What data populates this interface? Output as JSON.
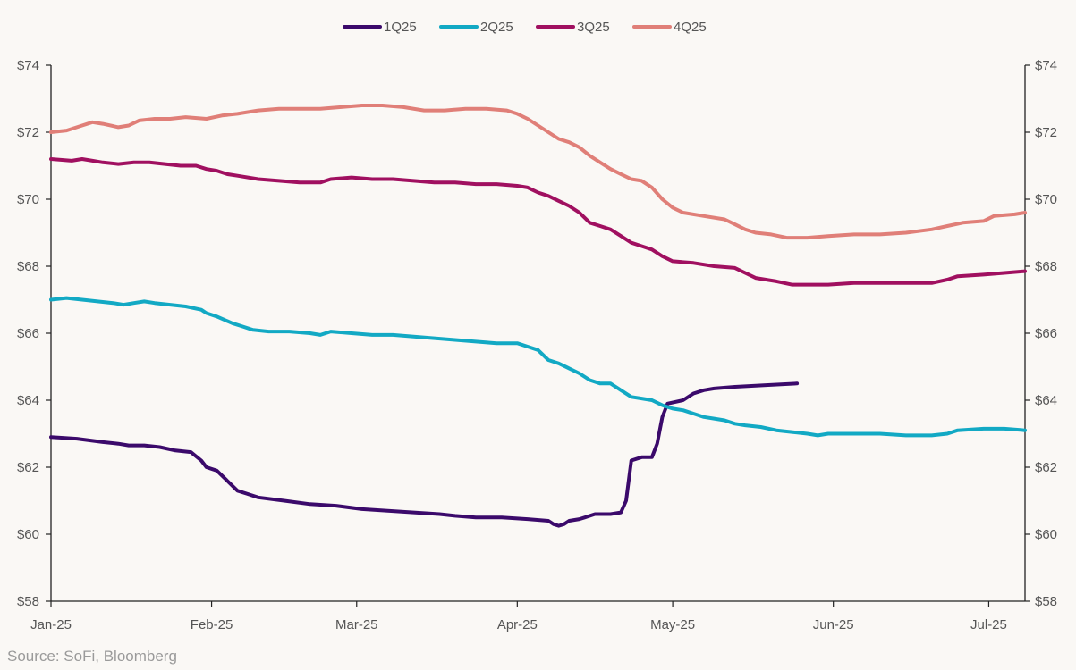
{
  "chart_data": {
    "type": "line",
    "title": "",
    "xlabel": "",
    "ylabel": "",
    "y_tick_prefix": "$",
    "ylim": [
      58,
      74
    ],
    "yticks": [
      58,
      60,
      62,
      64,
      66,
      68,
      70,
      72,
      74
    ],
    "x_ticks": [
      {
        "label": "Jan-25",
        "day": 0
      },
      {
        "label": "Feb-25",
        "day": 31
      },
      {
        "label": "Mar-25",
        "day": 59
      },
      {
        "label": "Apr-25",
        "day": 90
      },
      {
        "label": "May-25",
        "day": 120
      },
      {
        "label": "Jun-25",
        "day": 151
      },
      {
        "label": "Jul-25",
        "day": 181
      }
    ],
    "x_domain": [
      0,
      188
    ],
    "legend_position": "top-center",
    "series": [
      {
        "name": "1Q25",
        "color": "#3b0a6b",
        "points": [
          [
            0,
            62.9
          ],
          [
            5,
            62.85
          ],
          [
            10,
            62.75
          ],
          [
            13,
            62.7
          ],
          [
            15,
            62.65
          ],
          [
            18,
            62.65
          ],
          [
            21,
            62.6
          ],
          [
            24,
            62.5
          ],
          [
            27,
            62.45
          ],
          [
            29,
            62.2
          ],
          [
            30,
            62.0
          ],
          [
            32,
            61.9
          ],
          [
            34,
            61.6
          ],
          [
            36,
            61.3
          ],
          [
            38,
            61.2
          ],
          [
            40,
            61.1
          ],
          [
            45,
            61.0
          ],
          [
            50,
            60.9
          ],
          [
            55,
            60.85
          ],
          [
            60,
            60.75
          ],
          [
            65,
            60.7
          ],
          [
            70,
            60.65
          ],
          [
            75,
            60.6
          ],
          [
            78,
            60.55
          ],
          [
            82,
            60.5
          ],
          [
            87,
            60.5
          ],
          [
            92,
            60.45
          ],
          [
            96,
            60.4
          ],
          [
            97,
            60.3
          ],
          [
            98,
            60.25
          ],
          [
            99,
            60.3
          ],
          [
            100,
            60.4
          ],
          [
            102,
            60.45
          ],
          [
            103,
            60.5
          ],
          [
            105,
            60.6
          ],
          [
            108,
            60.6
          ],
          [
            110,
            60.65
          ],
          [
            111,
            61.0
          ],
          [
            112,
            62.2
          ],
          [
            114,
            62.3
          ],
          [
            116,
            62.3
          ],
          [
            117,
            62.7
          ],
          [
            118,
            63.5
          ],
          [
            119,
            63.9
          ],
          [
            122,
            64.0
          ],
          [
            124,
            64.2
          ],
          [
            126,
            64.3
          ],
          [
            128,
            64.35
          ],
          [
            132,
            64.4
          ],
          [
            138,
            64.45
          ],
          [
            144,
            64.5
          ]
        ]
      },
      {
        "name": "2Q25",
        "color": "#12a9c4",
        "points": [
          [
            0,
            67.0
          ],
          [
            3,
            67.05
          ],
          [
            6,
            67.0
          ],
          [
            9,
            66.95
          ],
          [
            12,
            66.9
          ],
          [
            14,
            66.85
          ],
          [
            16,
            66.9
          ],
          [
            18,
            66.95
          ],
          [
            20,
            66.9
          ],
          [
            23,
            66.85
          ],
          [
            26,
            66.8
          ],
          [
            29,
            66.7
          ],
          [
            30,
            66.6
          ],
          [
            32,
            66.5
          ],
          [
            35,
            66.3
          ],
          [
            37,
            66.2
          ],
          [
            39,
            66.1
          ],
          [
            42,
            66.05
          ],
          [
            46,
            66.05
          ],
          [
            50,
            66.0
          ],
          [
            52,
            65.95
          ],
          [
            54,
            66.05
          ],
          [
            58,
            66.0
          ],
          [
            62,
            65.95
          ],
          [
            66,
            65.95
          ],
          [
            70,
            65.9
          ],
          [
            74,
            65.85
          ],
          [
            78,
            65.8
          ],
          [
            82,
            65.75
          ],
          [
            86,
            65.7
          ],
          [
            90,
            65.7
          ],
          [
            92,
            65.6
          ],
          [
            94,
            65.5
          ],
          [
            96,
            65.2
          ],
          [
            98,
            65.1
          ],
          [
            100,
            64.95
          ],
          [
            102,
            64.8
          ],
          [
            104,
            64.6
          ],
          [
            106,
            64.5
          ],
          [
            108,
            64.5
          ],
          [
            110,
            64.3
          ],
          [
            112,
            64.1
          ],
          [
            114,
            64.05
          ],
          [
            116,
            64.0
          ],
          [
            118,
            63.85
          ],
          [
            120,
            63.75
          ],
          [
            122,
            63.7
          ],
          [
            124,
            63.6
          ],
          [
            126,
            63.5
          ],
          [
            128,
            63.45
          ],
          [
            130,
            63.4
          ],
          [
            132,
            63.3
          ],
          [
            134,
            63.25
          ],
          [
            137,
            63.2
          ],
          [
            140,
            63.1
          ],
          [
            143,
            63.05
          ],
          [
            146,
            63.0
          ],
          [
            148,
            62.95
          ],
          [
            150,
            63.0
          ],
          [
            155,
            63.0
          ],
          [
            160,
            63.0
          ],
          [
            165,
            62.95
          ],
          [
            170,
            62.95
          ],
          [
            173,
            63.0
          ],
          [
            175,
            63.1
          ],
          [
            180,
            63.15
          ],
          [
            184,
            63.15
          ],
          [
            188,
            63.1
          ]
        ]
      },
      {
        "name": "3Q25",
        "color": "#a01060",
        "points": [
          [
            0,
            71.2
          ],
          [
            4,
            71.15
          ],
          [
            6,
            71.2
          ],
          [
            8,
            71.15
          ],
          [
            10,
            71.1
          ],
          [
            13,
            71.05
          ],
          [
            16,
            71.1
          ],
          [
            19,
            71.1
          ],
          [
            22,
            71.05
          ],
          [
            25,
            71.0
          ],
          [
            28,
            71.0
          ],
          [
            30,
            70.9
          ],
          [
            32,
            70.85
          ],
          [
            34,
            70.75
          ],
          [
            36,
            70.7
          ],
          [
            40,
            70.6
          ],
          [
            44,
            70.55
          ],
          [
            48,
            70.5
          ],
          [
            52,
            70.5
          ],
          [
            54,
            70.6
          ],
          [
            58,
            70.65
          ],
          [
            62,
            70.6
          ],
          [
            66,
            70.6
          ],
          [
            70,
            70.55
          ],
          [
            74,
            70.5
          ],
          [
            78,
            70.5
          ],
          [
            82,
            70.45
          ],
          [
            86,
            70.45
          ],
          [
            90,
            70.4
          ],
          [
            92,
            70.35
          ],
          [
            94,
            70.2
          ],
          [
            96,
            70.1
          ],
          [
            98,
            69.95
          ],
          [
            100,
            69.8
          ],
          [
            102,
            69.6
          ],
          [
            104,
            69.3
          ],
          [
            106,
            69.2
          ],
          [
            108,
            69.1
          ],
          [
            110,
            68.9
          ],
          [
            112,
            68.7
          ],
          [
            114,
            68.6
          ],
          [
            116,
            68.5
          ],
          [
            118,
            68.3
          ],
          [
            120,
            68.15
          ],
          [
            124,
            68.1
          ],
          [
            128,
            68.0
          ],
          [
            132,
            67.95
          ],
          [
            134,
            67.8
          ],
          [
            136,
            67.65
          ],
          [
            140,
            67.55
          ],
          [
            143,
            67.45
          ],
          [
            146,
            67.45
          ],
          [
            150,
            67.45
          ],
          [
            155,
            67.5
          ],
          [
            160,
            67.5
          ],
          [
            165,
            67.5
          ],
          [
            170,
            67.5
          ],
          [
            173,
            67.6
          ],
          [
            175,
            67.7
          ],
          [
            180,
            67.75
          ],
          [
            184,
            67.8
          ],
          [
            188,
            67.85
          ]
        ]
      },
      {
        "name": "4Q25",
        "color": "#e07f78",
        "points": [
          [
            0,
            72.0
          ],
          [
            3,
            72.05
          ],
          [
            6,
            72.2
          ],
          [
            8,
            72.3
          ],
          [
            10,
            72.25
          ],
          [
            13,
            72.15
          ],
          [
            15,
            72.2
          ],
          [
            17,
            72.35
          ],
          [
            20,
            72.4
          ],
          [
            23,
            72.4
          ],
          [
            26,
            72.45
          ],
          [
            30,
            72.4
          ],
          [
            33,
            72.5
          ],
          [
            36,
            72.55
          ],
          [
            40,
            72.65
          ],
          [
            44,
            72.7
          ],
          [
            48,
            72.7
          ],
          [
            52,
            72.7
          ],
          [
            56,
            72.75
          ],
          [
            60,
            72.8
          ],
          [
            64,
            72.8
          ],
          [
            68,
            72.75
          ],
          [
            72,
            72.65
          ],
          [
            76,
            72.65
          ],
          [
            80,
            72.7
          ],
          [
            84,
            72.7
          ],
          [
            88,
            72.65
          ],
          [
            90,
            72.55
          ],
          [
            92,
            72.4
          ],
          [
            94,
            72.2
          ],
          [
            96,
            72.0
          ],
          [
            98,
            71.8
          ],
          [
            100,
            71.7
          ],
          [
            102,
            71.55
          ],
          [
            104,
            71.3
          ],
          [
            106,
            71.1
          ],
          [
            108,
            70.9
          ],
          [
            110,
            70.75
          ],
          [
            112,
            70.6
          ],
          [
            114,
            70.55
          ],
          [
            116,
            70.35
          ],
          [
            118,
            70.0
          ],
          [
            120,
            69.75
          ],
          [
            122,
            69.6
          ],
          [
            126,
            69.5
          ],
          [
            130,
            69.4
          ],
          [
            132,
            69.25
          ],
          [
            134,
            69.1
          ],
          [
            136,
            69.0
          ],
          [
            139,
            68.95
          ],
          [
            142,
            68.85
          ],
          [
            146,
            68.85
          ],
          [
            150,
            68.9
          ],
          [
            155,
            68.95
          ],
          [
            160,
            68.95
          ],
          [
            165,
            69.0
          ],
          [
            170,
            69.1
          ],
          [
            173,
            69.2
          ],
          [
            176,
            69.3
          ],
          [
            180,
            69.35
          ],
          [
            182,
            69.5
          ],
          [
            186,
            69.55
          ],
          [
            188,
            69.6
          ]
        ]
      }
    ]
  },
  "source": "Source: SoFi, Bloomberg"
}
